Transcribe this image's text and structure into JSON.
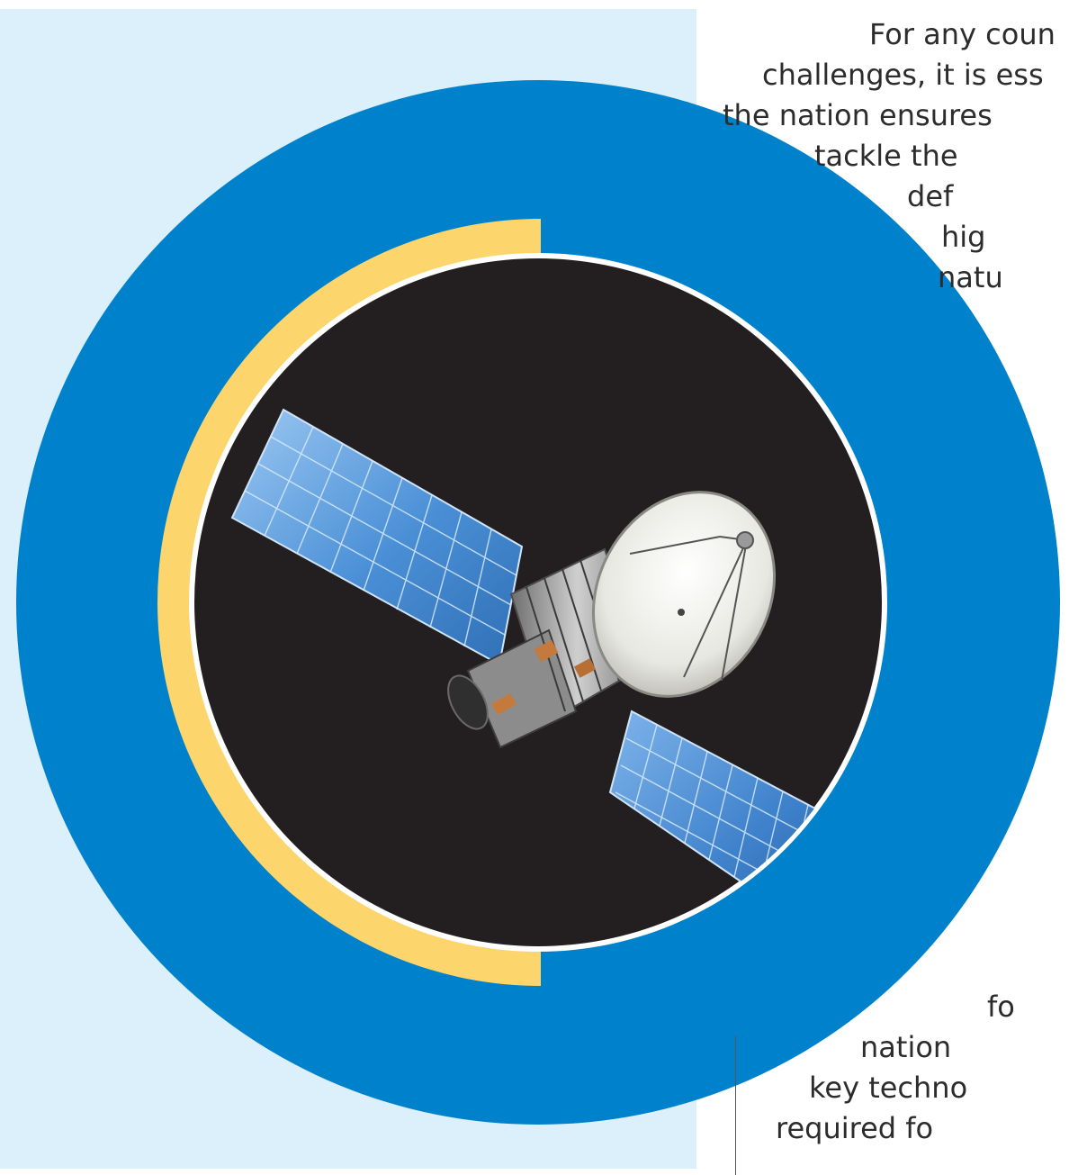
{
  "colors": {
    "light_panel": "#dbf0fb",
    "outer_ring": "#0081cb",
    "inner_arc": "#fcd56c",
    "space_disk": "#231f20",
    "disk_outline": "#ffffff",
    "solar_panel": "#4a8fd6",
    "solar_panel_light": "#9cc8f2",
    "dish": "#f0f0ec",
    "satellite_body": "#9b9b9b",
    "text": "#2c2c2c",
    "divider": "#555555"
  },
  "icons": {
    "satellite": "satellite-icon",
    "solar_panel": "solar-panel-icon",
    "dish": "dish-antenna-icon"
  },
  "text_upper": [
    "For any coun",
    "challenges, it is ess",
    "the nation ensures",
    "tackle the",
    "def",
    "hig",
    "natu"
  ],
  "text_lower": [
    "fo",
    "nation",
    "key techno",
    "required fo"
  ]
}
